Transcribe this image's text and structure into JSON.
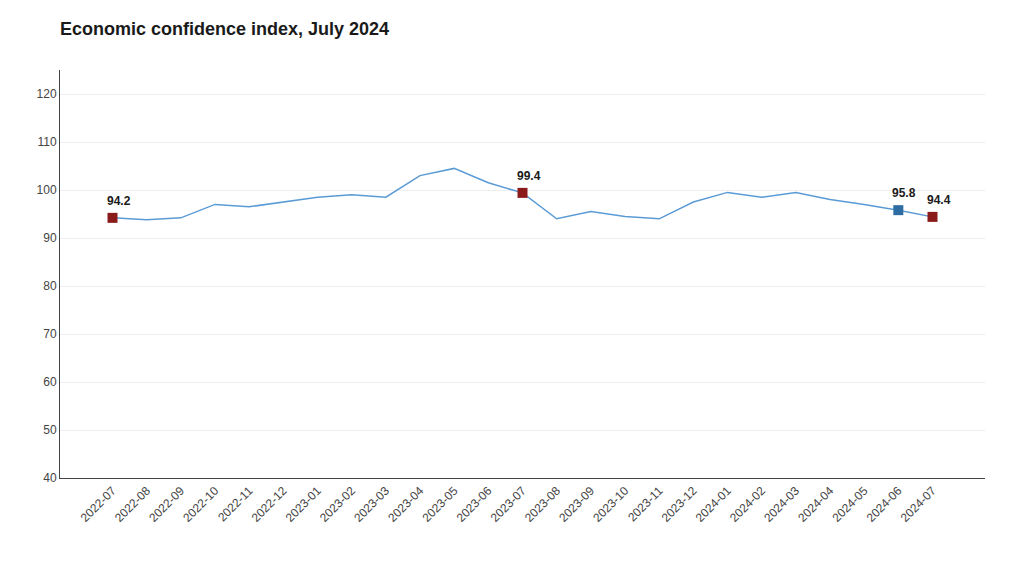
{
  "chart_data": {
    "type": "line",
    "title": "Economic confidence index, July 2024",
    "categories": [
      "2022-07",
      "2022-08",
      "2022-09",
      "2022-10",
      "2022-11",
      "2022-12",
      "2023-01",
      "2023-02",
      "2023-03",
      "2023-04",
      "2023-05",
      "2023-06",
      "2023-07",
      "2023-08",
      "2023-09",
      "2023-10",
      "2023-11",
      "2023-12",
      "2024-01",
      "2024-02",
      "2024-03",
      "2024-04",
      "2024-05",
      "2024-06",
      "2024-07"
    ],
    "values": [
      94.2,
      93.8,
      94.2,
      97.0,
      96.5,
      97.5,
      98.5,
      99.0,
      98.5,
      103.0,
      104.5,
      101.5,
      99.4,
      94.0,
      95.5,
      94.5,
      94.0,
      97.5,
      99.5,
      98.5,
      99.5,
      98.0,
      97.0,
      95.8,
      94.4
    ],
    "color": "#5b9bd5",
    "annotations": [
      {
        "x": "2022-07",
        "y": 94.2,
        "text": "94.2",
        "color": "#8b1a1a",
        "marker": "square"
      },
      {
        "x": "2023-07",
        "y": 99.4,
        "text": "99.4",
        "color": "#8b1a1a",
        "marker": "square"
      },
      {
        "x": "2024-06",
        "y": 95.8,
        "text": "95.8",
        "color": "#2e6da4",
        "marker": "square"
      },
      {
        "x": "2024-07",
        "y": 94.4,
        "text": "94.4",
        "color": "#8b1a1a",
        "marker": "square"
      }
    ],
    "ylim": [
      40,
      125
    ],
    "yticks": [
      40,
      50,
      60,
      70,
      80,
      90,
      100,
      110,
      120
    ],
    "grid": true
  }
}
